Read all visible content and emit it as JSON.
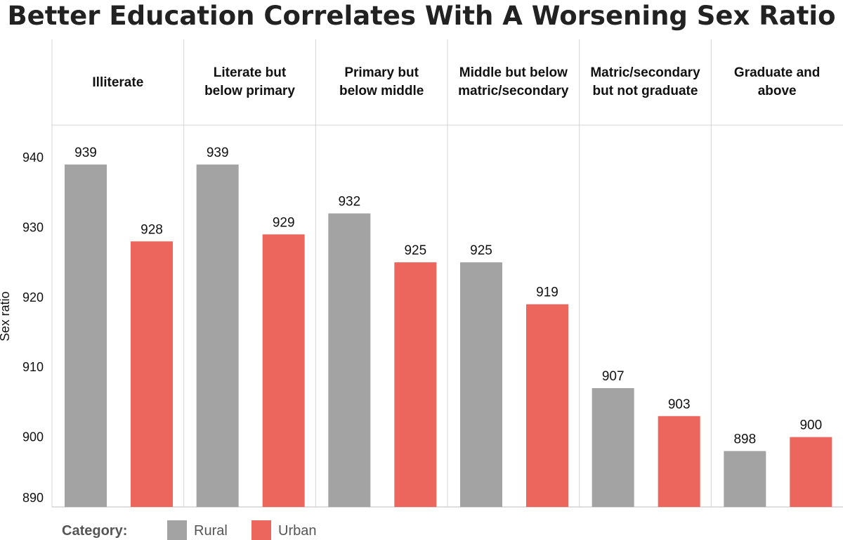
{
  "title": "Better Education Correlates With A Worsening Sex Ratio",
  "chart_data": {
    "type": "bar",
    "title": "Better Education Correlates With A Worsening Sex Ratio",
    "xlabel": "",
    "ylabel": "Sex ratio",
    "ylim": [
      890,
      945
    ],
    "yticks": [
      890,
      900,
      910,
      920,
      930,
      940
    ],
    "categories": [
      [
        "Illiterate"
      ],
      [
        "Literate but",
        "below primary"
      ],
      [
        "Primary but",
        "below middle"
      ],
      [
        "Middle but below",
        "matric/secondary"
      ],
      [
        "Matric/secondary",
        "but not graduate"
      ],
      [
        "Graduate and",
        "above"
      ]
    ],
    "series": [
      {
        "name": "Rural",
        "color": "#a3a3a3",
        "values": [
          939,
          939,
          932,
          925,
          907,
          898
        ]
      },
      {
        "name": "Urban",
        "color": "#ec665e",
        "values": [
          928,
          929,
          925,
          919,
          903,
          900
        ]
      }
    ],
    "legend": {
      "title": "Category:",
      "position": "bottom-left"
    }
  }
}
